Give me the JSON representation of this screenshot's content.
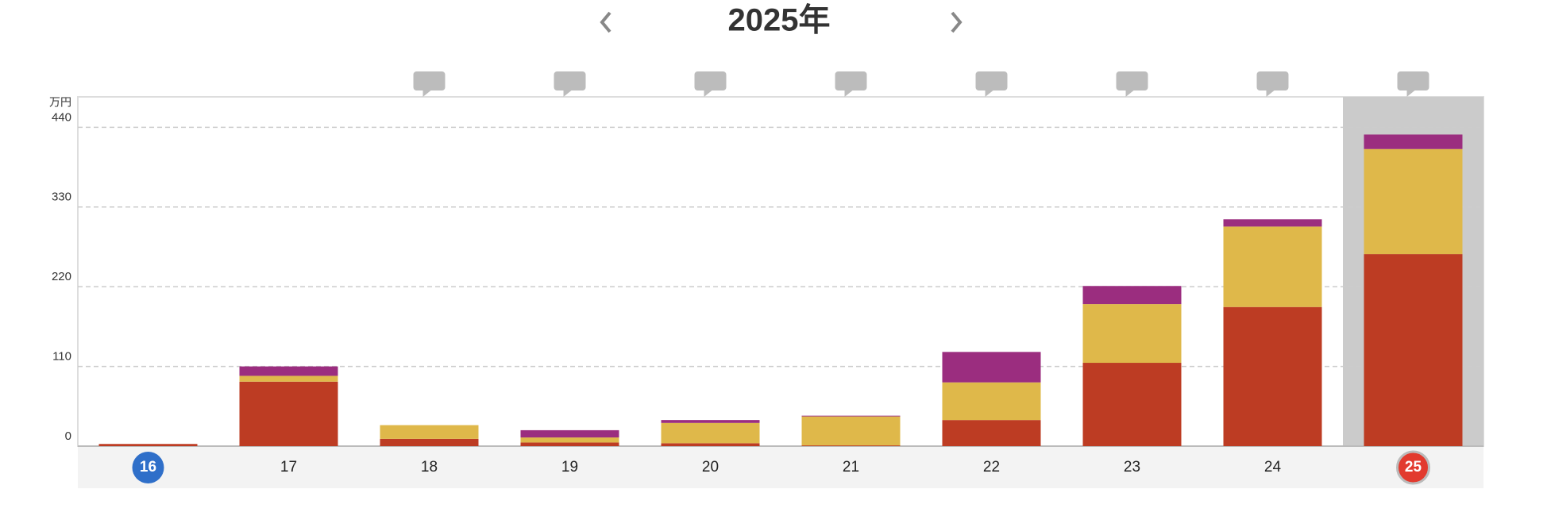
{
  "chart_data": {
    "type": "stacked_bar",
    "title": "2025年",
    "y_unit": "万円",
    "categories": [
      "16",
      "17",
      "18",
      "19",
      "20",
      "21",
      "22",
      "23",
      "24",
      "25"
    ],
    "series": [
      {
        "color": "#bd3c23",
        "values": [
          3,
          89,
          10,
          5,
          4,
          1,
          36,
          115,
          192,
          265
        ]
      },
      {
        "color": "#dfb84a",
        "values": [
          0,
          8,
          19,
          7,
          28,
          40,
          52,
          81,
          111,
          145
        ]
      },
      {
        "color": "#9b2d7f",
        "values": [
          0,
          13,
          0,
          10,
          4,
          1,
          42,
          25,
          10,
          20
        ]
      }
    ],
    "ylim": [
      0,
      482
    ],
    "yticks": [
      0,
      110,
      220,
      330,
      440
    ],
    "grid": true
  }
}
